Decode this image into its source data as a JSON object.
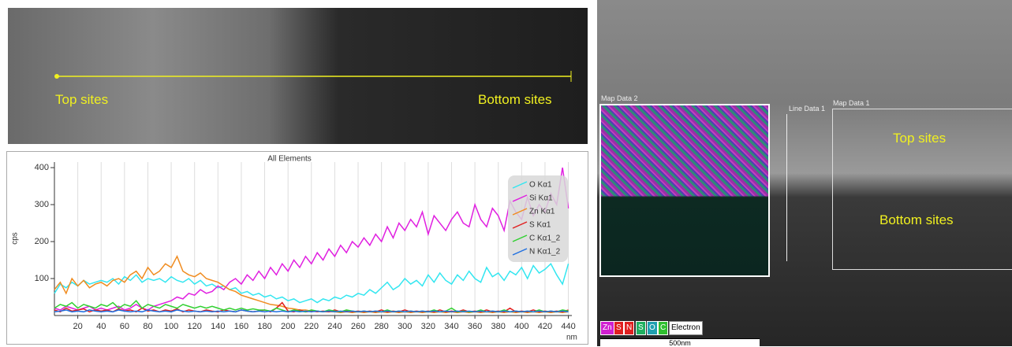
{
  "chart_data": {
    "type": "line",
    "title": "All Elements",
    "ylabel": "cps",
    "xlabel": "nm",
    "x": [
      0,
      5,
      10,
      15,
      20,
      25,
      30,
      35,
      40,
      45,
      50,
      55,
      60,
      65,
      70,
      75,
      80,
      85,
      90,
      95,
      100,
      105,
      110,
      115,
      120,
      125,
      130,
      135,
      140,
      145,
      150,
      155,
      160,
      165,
      170,
      175,
      180,
      185,
      190,
      195,
      200,
      205,
      210,
      215,
      220,
      225,
      230,
      235,
      240,
      245,
      250,
      255,
      260,
      265,
      270,
      275,
      280,
      285,
      290,
      295,
      300,
      305,
      310,
      315,
      320,
      325,
      330,
      335,
      340,
      345,
      350,
      355,
      360,
      365,
      370,
      375,
      380,
      385,
      390,
      395,
      400,
      405,
      410,
      415,
      420,
      425,
      430,
      435,
      440
    ],
    "series": [
      {
        "name": "O Kα1",
        "color": "#33e6f0",
        "values": [
          60,
          85,
          75,
          90,
          80,
          95,
          85,
          90,
          95,
          90,
          100,
          85,
          105,
          95,
          110,
          90,
          100,
          95,
          100,
          90,
          105,
          95,
          90,
          100,
          85,
          95,
          80,
          85,
          75,
          80,
          70,
          75,
          60,
          65,
          55,
          60,
          50,
          55,
          45,
          50,
          40,
          45,
          35,
          40,
          45,
          35,
          45,
          40,
          50,
          45,
          55,
          50,
          60,
          55,
          70,
          60,
          75,
          90,
          70,
          80,
          100,
          85,
          95,
          80,
          110,
          90,
          115,
          95,
          85,
          110,
          95,
          120,
          100,
          90,
          130,
          105,
          115,
          95,
          120,
          110,
          130,
          100,
          135,
          115,
          125,
          140,
          110,
          85,
          140
        ]
      },
      {
        "name": "Si Kα1",
        "color": "#e020e0",
        "values": [
          20,
          15,
          25,
          20,
          15,
          20,
          25,
          15,
          20,
          15,
          20,
          25,
          15,
          20,
          30,
          20,
          15,
          25,
          30,
          35,
          40,
          50,
          45,
          60,
          55,
          70,
          60,
          65,
          80,
          70,
          90,
          100,
          85,
          110,
          95,
          120,
          100,
          130,
          110,
          140,
          120,
          150,
          130,
          160,
          140,
          170,
          150,
          180,
          160,
          190,
          170,
          200,
          185,
          210,
          190,
          220,
          200,
          240,
          210,
          250,
          230,
          260,
          240,
          280,
          220,
          270,
          250,
          230,
          260,
          280,
          250,
          240,
          300,
          260,
          240,
          290,
          270,
          230,
          310,
          280,
          260,
          320,
          270,
          300,
          280,
          330,
          300,
          400,
          290
        ]
      },
      {
        "name": "Zn Kα1",
        "color": "#f08c20",
        "values": [
          70,
          90,
          60,
          100,
          80,
          95,
          75,
          85,
          90,
          80,
          95,
          100,
          90,
          110,
          120,
          100,
          130,
          110,
          120,
          140,
          130,
          160,
          120,
          110,
          105,
          115,
          100,
          95,
          90,
          80,
          70,
          65,
          55,
          50,
          45,
          40,
          35,
          30,
          28,
          25,
          20,
          18,
          15,
          15,
          12,
          12,
          10,
          10,
          10,
          8,
          10,
          8,
          10,
          8,
          10,
          8,
          10,
          8,
          10,
          8,
          10,
          8,
          10,
          8,
          10,
          8,
          10,
          8,
          10,
          8,
          10,
          8,
          10,
          8,
          10,
          8,
          10,
          8,
          10,
          8,
          10,
          8,
          10,
          8,
          10,
          8,
          10,
          8,
          10
        ]
      },
      {
        "name": "S Kα1",
        "color": "#e02020",
        "values": [
          15,
          10,
          20,
          12,
          15,
          18,
          10,
          15,
          12,
          15,
          10,
          18,
          12,
          15,
          10,
          20,
          12,
          15,
          10,
          15,
          12,
          18,
          10,
          15,
          12,
          10,
          15,
          12,
          10,
          15,
          12,
          10,
          15,
          12,
          10,
          12,
          15,
          10,
          20,
          35,
          12,
          10,
          15,
          10,
          12,
          10,
          12,
          10,
          15,
          10,
          12,
          10,
          12,
          10,
          12,
          10,
          15,
          10,
          12,
          10,
          15,
          10,
          12,
          10,
          12,
          10,
          15,
          10,
          12,
          10,
          15,
          10,
          12,
          10,
          15,
          10,
          12,
          10,
          20,
          10,
          12,
          10,
          15,
          10,
          12,
          10,
          12,
          10,
          15
        ]
      },
      {
        "name": "C Kα1_2",
        "color": "#30d030",
        "values": [
          20,
          30,
          25,
          35,
          20,
          30,
          25,
          20,
          30,
          25,
          35,
          20,
          30,
          25,
          40,
          20,
          30,
          25,
          20,
          30,
          25,
          20,
          30,
          25,
          20,
          25,
          20,
          25,
          20,
          15,
          20,
          15,
          20,
          15,
          18,
          15,
          15,
          12,
          20,
          15,
          10,
          15,
          12,
          10,
          15,
          12,
          10,
          15,
          12,
          10,
          15,
          12,
          10,
          12,
          10,
          12,
          10,
          15,
          10,
          12,
          10,
          12,
          10,
          12,
          10,
          15,
          10,
          12,
          20,
          10,
          12,
          10,
          10,
          15,
          10,
          12,
          10,
          15,
          10,
          12,
          10,
          12,
          10,
          15,
          10,
          12,
          10,
          15,
          12
        ]
      },
      {
        "name": "N Kα1_2",
        "color": "#2070e0",
        "values": [
          10,
          12,
          15,
          10,
          12,
          10,
          15,
          12,
          10,
          12,
          10,
          15,
          12,
          10,
          12,
          10,
          15,
          12,
          10,
          12,
          10,
          15,
          12,
          10,
          12,
          10,
          12,
          10,
          12,
          10,
          12,
          10,
          15,
          12,
          10,
          12,
          10,
          12,
          10,
          12,
          10,
          12,
          10,
          12,
          10,
          12,
          10,
          12,
          10,
          12,
          10,
          12,
          10,
          12,
          10,
          12,
          10,
          12,
          10,
          12,
          10,
          12,
          10,
          12,
          10,
          12,
          10,
          12,
          10,
          12,
          10,
          12,
          10,
          12,
          10,
          12,
          10,
          12,
          10,
          12,
          10,
          12,
          10,
          12,
          10,
          12,
          10,
          12,
          10
        ]
      }
    ],
    "xlim": [
      0,
      443
    ],
    "ylim": [
      0,
      415
    ],
    "xticks": [
      20,
      40,
      60,
      80,
      100,
      120,
      140,
      160,
      180,
      200,
      220,
      240,
      260,
      280,
      300,
      320,
      340,
      360,
      380,
      400,
      420,
      440
    ],
    "yticks": [
      100,
      200,
      300,
      400
    ],
    "grid": "x",
    "legend": "top-right"
  },
  "sem_image": {
    "left_label": "Top sites",
    "right_label": "Bottom sites"
  },
  "map_image": {
    "map2_label": "Map Data 2",
    "line_label": "Line Data 1",
    "map1_label": "Map Data 1",
    "top_label": "Top sites",
    "bottom_label": "Bottom sites",
    "chips": [
      "Zn",
      "S",
      "N",
      "S",
      "O",
      "C",
      "Electron"
    ],
    "scale": "500nm"
  }
}
